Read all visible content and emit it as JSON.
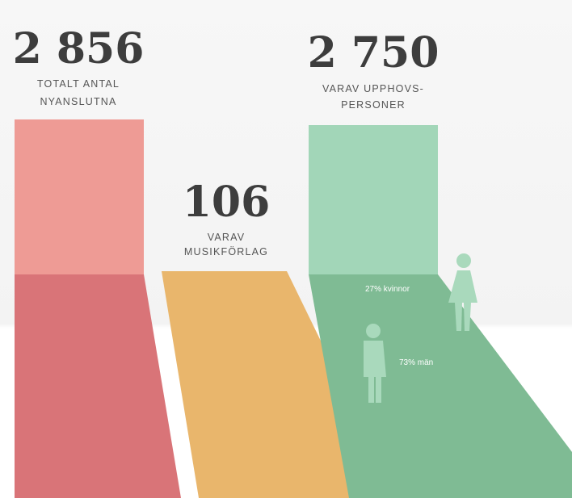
{
  "items": [
    {
      "value": "2 856",
      "label": [
        "TOTALT ANTAL",
        "NYANSLUTNA"
      ]
    },
    {
      "value": "106",
      "label": [
        "VARAV",
        "MUSIKFÖRLAG"
      ]
    },
    {
      "value": "2 750",
      "label": [
        "VARAV UPPHOVS-",
        "PERSONER"
      ]
    }
  ],
  "annotations": [
    "27% kvinnor",
    "73% män"
  ]
}
